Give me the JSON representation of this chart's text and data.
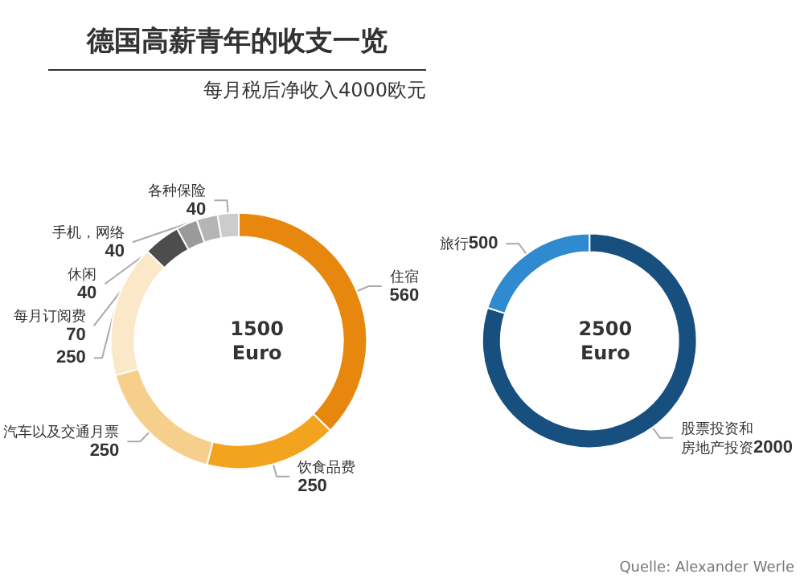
{
  "chart_data": [
    {
      "type": "donut",
      "title": "德国高薪青年的收支一览",
      "subtitle": "每月税后净收入4000欧元",
      "categories": [
        "住宿",
        "饮食品费",
        "汽车以及交通月票",
        null,
        "每月订阅费",
        "休闲",
        "手机，网络",
        "各种保险"
      ],
      "values": [
        560,
        250,
        250,
        250,
        70,
        40,
        40,
        40
      ],
      "colors": [
        "#e8870e",
        "#f3a41f",
        "#f7cf8c",
        "#fbe8c8",
        "#4d4d4d",
        "#9a9a9a",
        "#b5b5b5",
        "#cccccc"
      ],
      "annotations": [
        "1500\nEuro"
      ],
      "data_labels": true,
      "legend": false
    },
    {
      "type": "donut",
      "categories": [
        "股票投资和房地产投资",
        "旅行"
      ],
      "values": [
        2000,
        500
      ],
      "colors": [
        "#17507f",
        "#2f8ad0"
      ],
      "annotations": [
        "2500\nEuro",
        "Quelle: Alexander Werle"
      ],
      "data_labels": true,
      "legend": false
    }
  ]
}
